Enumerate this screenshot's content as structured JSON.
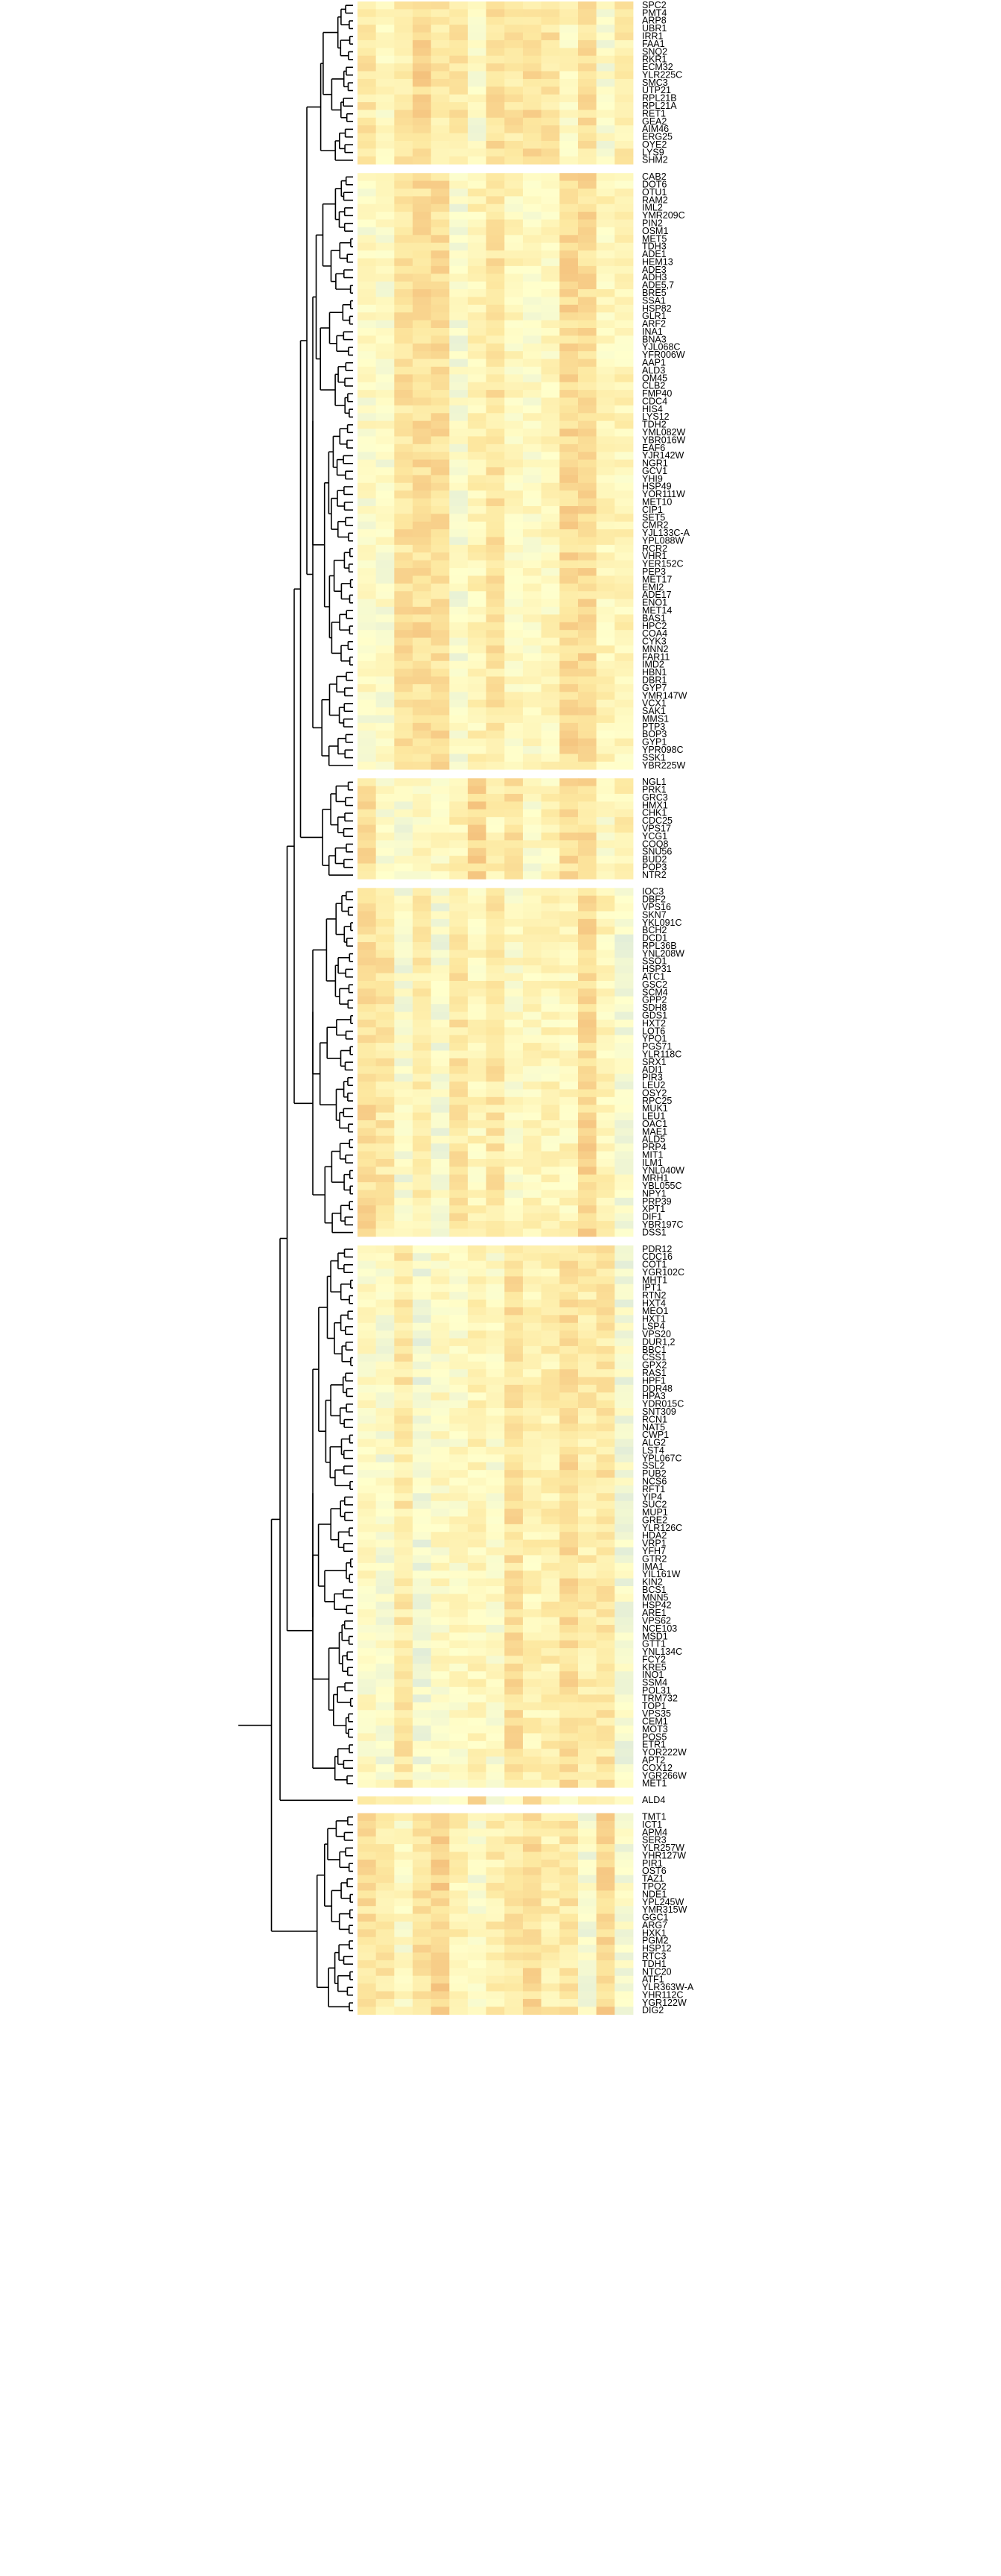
{
  "chart_data": {
    "type": "heatmap",
    "title": "",
    "xlabel": "",
    "ylabel": "",
    "n_columns": 15,
    "gap_after_row": [
      20,
      97,
      110,
      155,
      225,
      226,
      305,
      309,
      319
    ],
    "colors": {
      "low": "#b9d4ea",
      "neutral": "#ffffcc",
      "mid": "#fde8a0",
      "high": "#f4c07c",
      "extreme": "#e88e60",
      "dendrogram": "#000000",
      "text": "#000000",
      "background": "#ffffff"
    },
    "rows": [
      "SPC2",
      "PMT4",
      "ARP8",
      "UBR1",
      "IRR1",
      "FAA1",
      "SNQ2",
      "RKR1",
      "ECM32",
      "YLR225C",
      "SMC3",
      "UTP21",
      "RPL21B",
      "RPL21A",
      "RET1",
      "GEA2",
      "AIM46",
      "ERG25",
      "OYE2",
      "LYS9",
      "SHM2",
      "CAB2",
      "DOT6",
      "OTU1",
      "RAM2",
      "IML2",
      "YMR209C",
      "PIN2",
      "OSM1",
      "MET5",
      "TDH3",
      "ADE1",
      "HEM13",
      "ADE3",
      "ADH3",
      "ADE5,7",
      "BRE5",
      "SSA1",
      "HSP82",
      "GLR1",
      "ARF2",
      "INA1",
      "BNA3",
      "YJL068C",
      "YFR006W",
      "AAP1",
      "ALD3",
      "OM45",
      "CLB2",
      "FMP40",
      "CDC4",
      "HIS4",
      "LYS12",
      "TDH2",
      "YML082W",
      "YBR016W",
      "EAF6",
      "YJR142W",
      "NGR1",
      "GCV1",
      "YHI9",
      "HSP49",
      "YOR111W",
      "MET10",
      "CIP1",
      "SET5",
      "CMR2",
      "YJL133C-A",
      "YPL088W",
      "RCR2",
      "VHR1",
      "YER152C",
      "PEP3",
      "MET17",
      "EMI2",
      "ADE17",
      "ENO1",
      "MET14",
      "BAS1",
      "HPC2",
      "COA4",
      "CYK3",
      "MNN2",
      "FAR11",
      "IMD2",
      "HBN1",
      "DBR1",
      "GYP7",
      "YMR147W",
      "VCX1",
      "SAK1",
      "MMS1",
      "PTP3",
      "BOP3",
      "GYP1",
      "YPR098C",
      "SSK1",
      "YBR225W",
      "NGL1",
      "PRK1",
      "GRC3",
      "HMX1",
      "CHK1",
      "CDC25",
      "VPS17",
      "YCG1",
      "COQ8",
      "SNU56",
      "BUD2",
      "POP3",
      "NTR2",
      "IOC3",
      "DBF2",
      "VPS16",
      "SKN7",
      "YKL091C",
      "BCH2",
      "DCD1",
      "RPL36B",
      "YNL208W",
      "SSO1",
      "HSP31",
      "ATC1",
      "GSC2",
      "SCM4",
      "GPP2",
      "SDH8",
      "GDS1",
      "HXT2",
      "LOT6",
      "YPQ1",
      "PGS71",
      "YLR118C",
      "SRX1",
      "ADI1",
      "PIR3",
      "LEU2",
      "OSY2",
      "RPC25",
      "MUK1",
      "LEU1",
      "OAC1",
      "MAE1",
      "ALD5",
      "PRP4",
      "MIT1",
      "ILM1",
      "YNL040W",
      "MRH1",
      "YBL055C",
      "NPY1",
      "PRP39",
      "XPT1",
      "DIF1",
      "YBR197C",
      "DSS1",
      "PDR12",
      "CDC16",
      "COT1",
      "YGR102C",
      "MHT1",
      "IPT1",
      "RTN2",
      "HXT4",
      "MEO1",
      "HXT1",
      "LSP4",
      "VPS20",
      "DUR1,2",
      "BBC1",
      "CSS1",
      "GPX2",
      "RAS1",
      "HPF1",
      "DDR48",
      "HPA3",
      "YDR015C",
      "SNT309",
      "RCN1",
      "NAT5",
      "CWP1",
      "ALG2",
      "LST4",
      "YPL067C",
      "SSL2",
      "PUB2",
      "NCS6",
      "RFT1",
      "YIP4",
      "SUC2",
      "MUP1",
      "GRE2",
      "YLR126C",
      "HDA2",
      "VRP1",
      "YFH7",
      "GTR2",
      "IMA1",
      "YIL161W",
      "KIN2",
      "BCS1",
      "MNN5",
      "HSP42",
      "ARE1",
      "VPS62",
      "NCE103",
      "MSD1",
      "GTT1",
      "YNL134C",
      "FCY2",
      "KRE5",
      "INO1",
      "SSM4",
      "POL31",
      "TRM732",
      "TOP1",
      "VPS35",
      "CEM1",
      "MOT3",
      "POS5",
      "ETR1",
      "YOR222W",
      "APT2",
      "COX12",
      "YGR266W",
      "MET1",
      "ALD4",
      "TMT1",
      "ICT1",
      "APM4",
      "SER3",
      "YLR257W",
      "YHR127W",
      "PIR1",
      "OST6",
      "TAZ1",
      "TPO2",
      "NDE1",
      "YPL245W",
      "YMR315W",
      "GGC1",
      "ARG7",
      "HXK1",
      "PGM2",
      "HSP12",
      "RTC3",
      "TDH1",
      "NTC20",
      "ATF1",
      "YLR363W-A",
      "YHR112C",
      "YGR122W",
      "DIG2"
    ]
  }
}
